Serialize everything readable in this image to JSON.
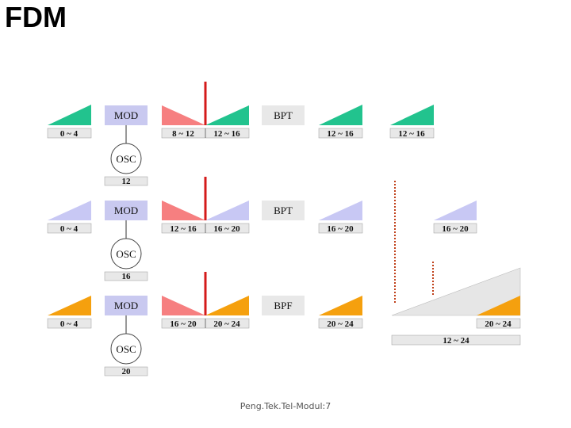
{
  "title": "FDM",
  "footer": "Peng.Tek.Tel-Modul:7",
  "colors": {
    "green": "#22c38e",
    "lavender": "#c8c8f4",
    "orange": "#f5a00e",
    "pink": "#f67f80",
    "red": "#d41a1a",
    "dotted": "#c0401a",
    "block": "#c9c9f0",
    "label_bg": "#e8e8e8"
  },
  "channels": [
    {
      "input_label": "0 ~ 4",
      "mod_label": "MOD",
      "osc_label": "OSC",
      "osc_freq": "12",
      "mixed_lower": "8 ~ 12",
      "mixed_upper": "12 ~ 16",
      "filter_label": "BPT",
      "output_label": "12 ~ 16",
      "far_label": "12 ~ 16"
    },
    {
      "input_label": "0 ~ 4",
      "mod_label": "MOD",
      "osc_label": "OSC",
      "osc_freq": "16",
      "mixed_lower": "12 ~ 16",
      "mixed_upper": "16 ~ 20",
      "filter_label": "BPT",
      "output_label": "16 ~ 20",
      "far_label": "16 ~ 20"
    },
    {
      "input_label": "0 ~ 4",
      "mod_label": "MOD",
      "osc_label": "OSC",
      "osc_freq": "20",
      "mixed_lower": "16 ~ 20",
      "mixed_upper": "20 ~ 24",
      "filter_label": "BPF",
      "output_label": "20 ~ 24",
      "far_label": "20 ~ 24"
    }
  ],
  "composite_label": "12 ~ 24"
}
